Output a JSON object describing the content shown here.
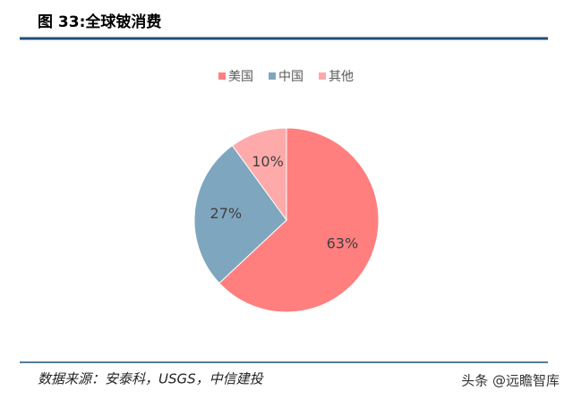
{
  "chart_data": {
    "type": "pie",
    "title": "图 33:全球铍消费",
    "categories": [
      "美国",
      "中国",
      "其他"
    ],
    "values": [
      63,
      27,
      10
    ],
    "value_labels": [
      "63%",
      "27%",
      "10%"
    ],
    "colors": [
      "#ff7f7f",
      "#7fa6bf",
      "#ffaaaa"
    ],
    "legend": "top",
    "source": "数据来源：安泰科，USGS，中信建投",
    "watermark": "头条 @远瞻智库"
  }
}
